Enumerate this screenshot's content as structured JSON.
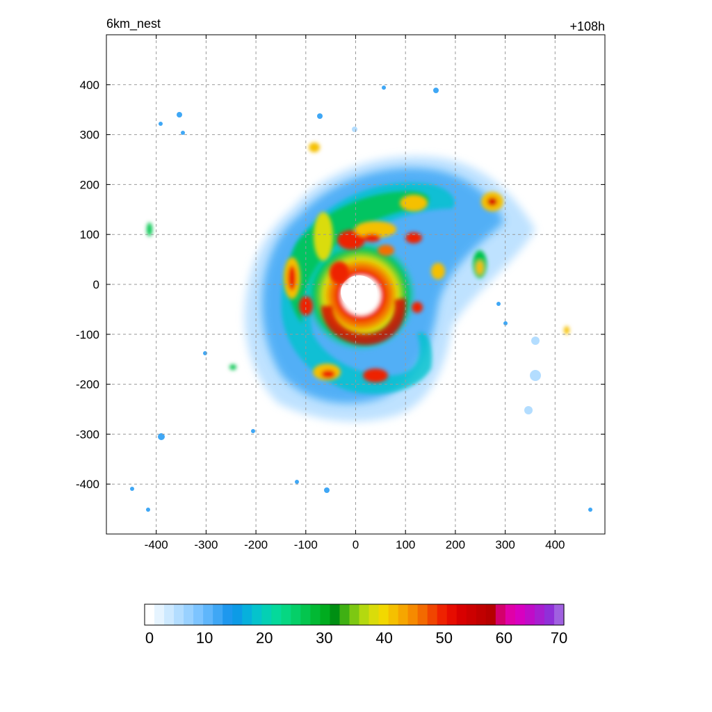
{
  "header": {
    "left_title": "6km_nest",
    "right_title": "+108h"
  },
  "chart_data": {
    "type": "heatmap",
    "title": "6km_nest",
    "time_label": "+108h",
    "xlabel": "",
    "ylabel": "",
    "xlim": [
      -500,
      500
    ],
    "ylim": [
      -500,
      500
    ],
    "x_ticks": [
      -400,
      -300,
      -200,
      -100,
      0,
      100,
      200,
      300,
      400
    ],
    "y_ticks": [
      400,
      300,
      200,
      100,
      0,
      -100,
      -200,
      -300,
      -400
    ],
    "grid": true,
    "colorbar": {
      "min": 0,
      "max": 70,
      "ticks": [
        0,
        10,
        20,
        30,
        40,
        50,
        60,
        70
      ],
      "colors": [
        "#ffffff",
        "#e6f4ff",
        "#cde9ff",
        "#b3ddff",
        "#99d1ff",
        "#7dc4ff",
        "#5fb6fb",
        "#3fa7f5",
        "#1e98ee",
        "#0d9be6",
        "#07b0dc",
        "#05c3cc",
        "#04d0b4",
        "#05d99b",
        "#06d782",
        "#05cf68",
        "#04c54e",
        "#02b934",
        "#00ac1f",
        "#008f13",
        "#3fb013",
        "#7dc812",
        "#b4d90f",
        "#dadc0a",
        "#f2d800",
        "#f5c000",
        "#f6a600",
        "#f68a00",
        "#f36a00",
        "#f04500",
        "#ee2200",
        "#e60c00",
        "#d80000",
        "#cc0000",
        "#c00000",
        "#b60000",
        "#d4006c",
        "#e000a8",
        "#d800c0",
        "#c00cc8",
        "#a81ed0",
        "#9030d8",
        "#a060e0"
      ]
    },
    "features": [
      {
        "name": "eye",
        "center": [
          10,
          -15
        ],
        "radius_km": 25,
        "value": 0
      },
      {
        "name": "eyewall",
        "center": [
          10,
          -15
        ],
        "max_value": 52
      },
      {
        "name": "outer rainbands",
        "min_value": 5,
        "max_value": 25
      }
    ]
  }
}
